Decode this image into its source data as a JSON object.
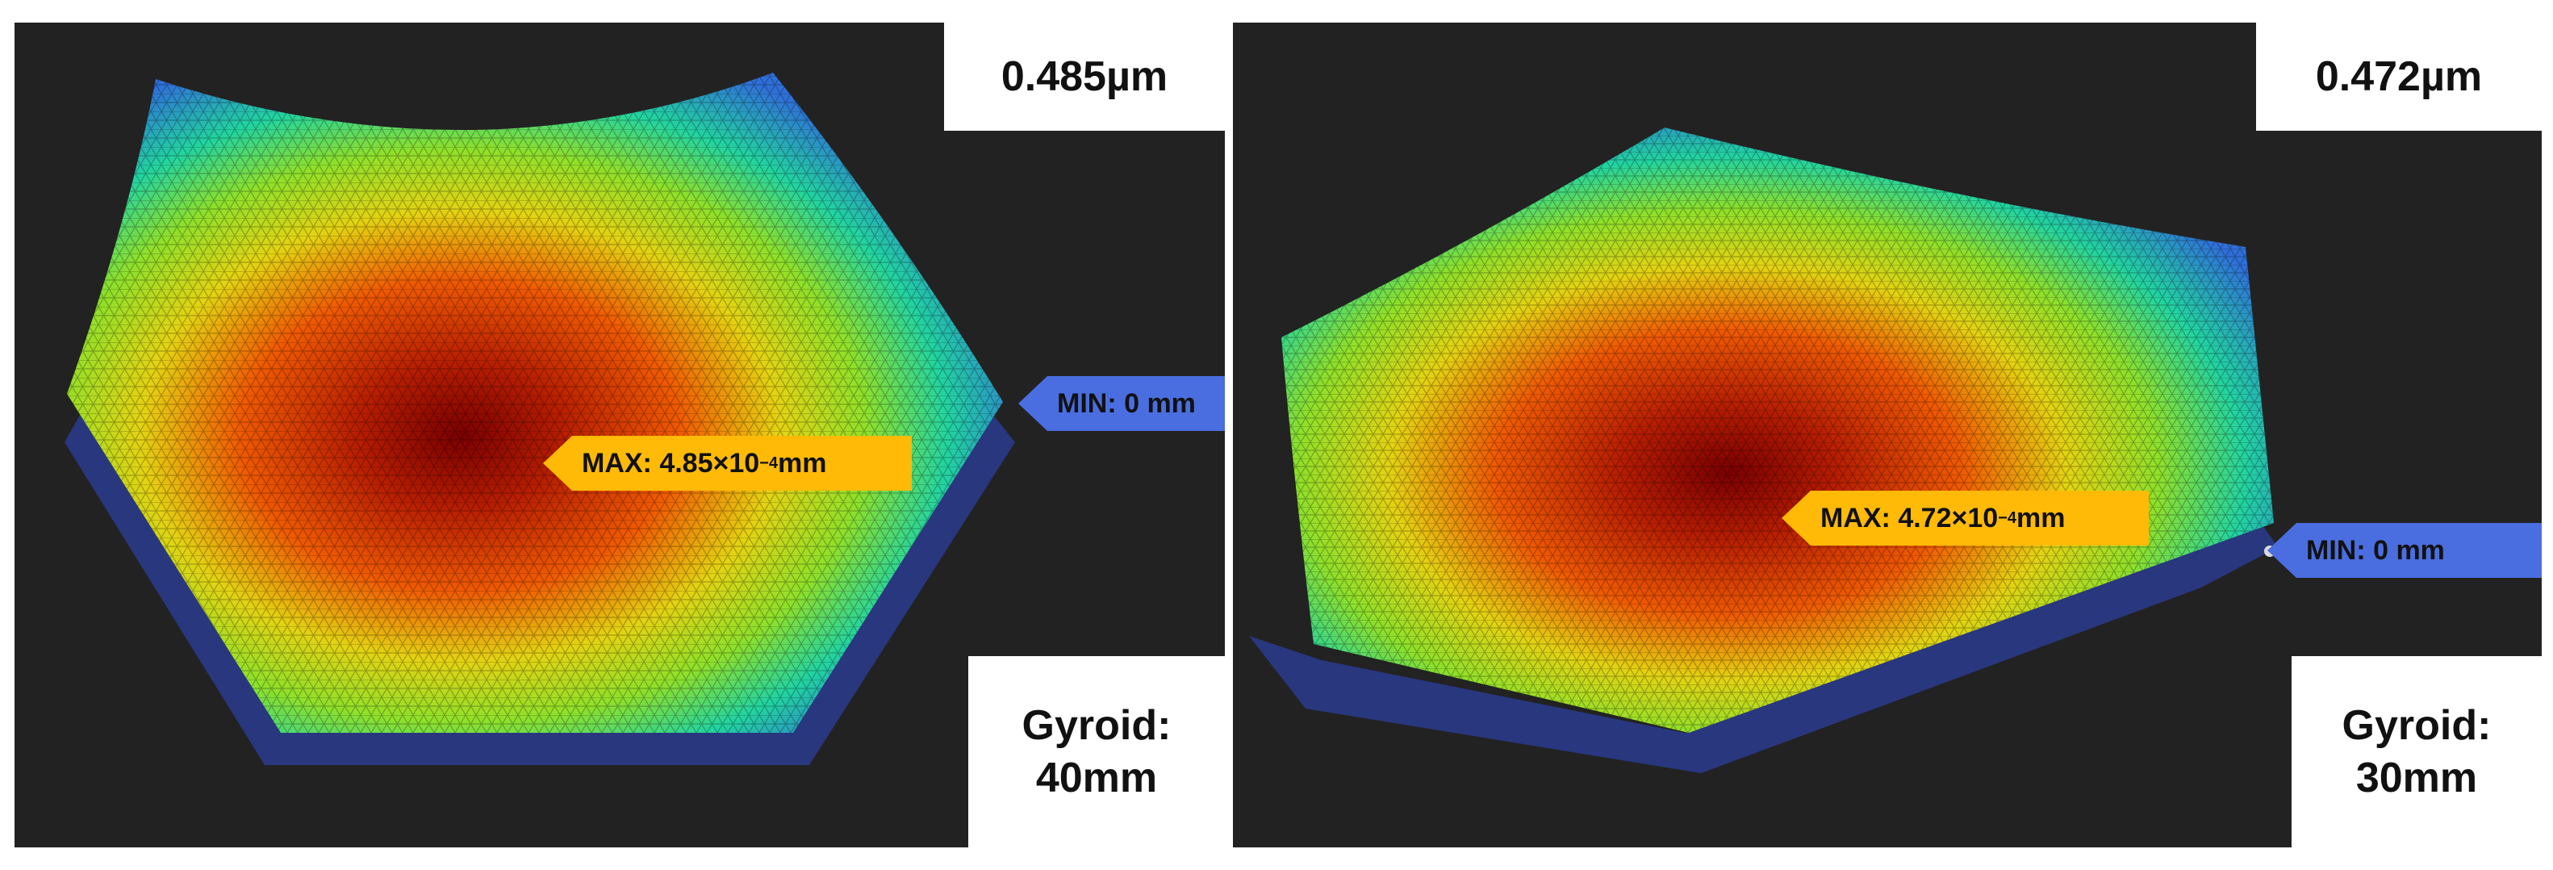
{
  "panels": [
    {
      "id": "left",
      "value_label": "0.485µm",
      "gyroid_label_line1": "Gyroid:",
      "gyroid_label_line2": "40mm",
      "max_prefix": "MAX: 4.85×10",
      "max_exp": "−4",
      "max_unit": " mm",
      "min_label": "MIN: 0 mm"
    },
    {
      "id": "right",
      "value_label": "0.472µm",
      "gyroid_label_line1": "Gyroid:",
      "gyroid_label_line2": "30mm",
      "max_prefix": "MAX: 4.72×10",
      "max_exp": "−4",
      "max_unit": " mm",
      "min_label": "MIN: 0 mm"
    }
  ],
  "colors": {
    "background": "#222222",
    "max_callout": "#ffba08",
    "min_callout": "#4a6ee0",
    "colormap": [
      "#7a0000",
      "#c52a00",
      "#ff6a00",
      "#e8d20a",
      "#8fe02a",
      "#22d4a0",
      "#2f6fd8",
      "#26307a"
    ]
  }
}
